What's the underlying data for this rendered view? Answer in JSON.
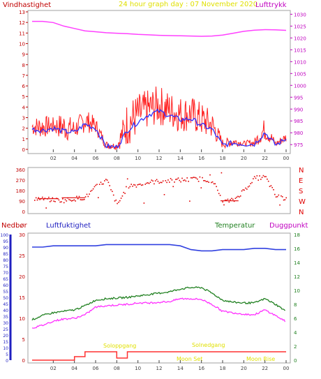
{
  "header": {
    "left_label": "Vindhastighet",
    "title": "24 hour graph day : 07 November 2020",
    "right_label": "Lufttrykk"
  },
  "colors": {
    "wind_raw": "#ff2020",
    "wind_avg": "#3030ff",
    "pressure": "#ff40ff",
    "direction": "#e00000",
    "humidity": "#3040e0",
    "temperature": "#208020",
    "dewpoint": "#ff30ff",
    "rain": "#ff3030",
    "header_left": "#c00000",
    "header_title": "#e0e000",
    "frame": "#a0a0a0"
  },
  "chart_data": [
    {
      "type": "line",
      "name": "wind-pressure",
      "x_ticks": [
        "02",
        "04",
        "06",
        "08",
        "10",
        "12",
        "14",
        "16",
        "18",
        "20",
        "22",
        "00"
      ],
      "yleft_ticks": [
        "0",
        "1",
        "2",
        "3",
        "4",
        "5",
        "6",
        "7",
        "8",
        "9",
        "10",
        "11",
        "12",
        "13"
      ],
      "yleft_lim": [
        0,
        13
      ],
      "yright_ticks": [
        "975",
        "980",
        "985",
        "990",
        "995",
        "1000",
        "1005",
        "1010",
        "1015",
        "1020",
        "1025",
        "1030"
      ],
      "yright_lim": [
        973,
        1031
      ],
      "hours": [
        0,
        1,
        2,
        3,
        4,
        5,
        6,
        7,
        8,
        9,
        10,
        11,
        12,
        13,
        14,
        15,
        16,
        17,
        18,
        19,
        20,
        21,
        22,
        23,
        24
      ],
      "wind_avg": [
        1.9,
        1.8,
        2.0,
        1.7,
        1.6,
        2.4,
        2.0,
        0.3,
        0.2,
        1.8,
        2.6,
        3.3,
        3.6,
        3.2,
        2.8,
        2.9,
        2.3,
        1.9,
        0.4,
        0.6,
        0.5,
        0.5,
        1.6,
        0.4,
        1.0
      ],
      "gust_peak": [
        3.0,
        3.2,
        3.0,
        3.5,
        2.8,
        3.8,
        3.0,
        0.8,
        0.6,
        4.6,
        5.2,
        5.6,
        6.0,
        5.4,
        5.0,
        5.0,
        4.4,
        3.6,
        1.0,
        1.2,
        0.8,
        1.0,
        3.0,
        0.8,
        1.6
      ],
      "pressure": [
        1027.0,
        1027.0,
        1026.5,
        1025.0,
        1024.0,
        1023.0,
        1022.6,
        1022.2,
        1022.0,
        1021.8,
        1021.5,
        1021.3,
        1021.1,
        1021.0,
        1020.9,
        1020.8,
        1020.7,
        1020.8,
        1021.2,
        1022.0,
        1022.8,
        1023.3,
        1023.5,
        1023.4,
        1023.2
      ]
    },
    {
      "type": "scatter",
      "name": "wind-direction",
      "yleft_ticks": [
        "0",
        "90",
        "180",
        "270",
        "360"
      ],
      "ylim": [
        0,
        360
      ],
      "yright_ticks": [
        "N",
        "W",
        "S",
        "E",
        "N"
      ],
      "hours": [
        0,
        1,
        2,
        3,
        4,
        5,
        6,
        7,
        8,
        9,
        10,
        11,
        12,
        13,
        14,
        15,
        16,
        17,
        18,
        19,
        20,
        21,
        22,
        23,
        24
      ],
      "direction": [
        120,
        110,
        105,
        100,
        115,
        125,
        215,
        275,
        60,
        225,
        235,
        255,
        265,
        270,
        275,
        280,
        285,
        270,
        90,
        100,
        190,
        290,
        300,
        135,
        115
      ]
    },
    {
      "type": "line",
      "name": "humidity-temperature-rain",
      "labels": {
        "rain": "Nedbør",
        "humidity": "Luftfuktighet",
        "temperature": "Temperatur",
        "dewpoint": "Duggpunkt"
      },
      "x_ticks": [
        "02",
        "04",
        "06",
        "08",
        "10",
        "12",
        "14",
        "16",
        "18",
        "20",
        "22",
        "00"
      ],
      "rain_ticks": [
        "0",
        "5",
        "10",
        "15",
        "20",
        "25",
        "30",
        "35",
        "40",
        "45",
        "50",
        "55",
        "60",
        "65",
        "70",
        "75",
        "80",
        "85",
        "90",
        "95",
        "100"
      ],
      "humidity_ticks": [
        "0",
        "5",
        "10",
        "15",
        "20",
        "25",
        "30"
      ],
      "temperature_ticks": [
        "0",
        "2",
        "4",
        "6",
        "8",
        "10",
        "12",
        "14",
        "16",
        "18"
      ],
      "temp_lim": [
        0,
        18
      ],
      "hours": [
        0,
        1,
        2,
        3,
        4,
        5,
        6,
        7,
        8,
        9,
        10,
        11,
        12,
        13,
        14,
        15,
        16,
        17,
        18,
        19,
        20,
        21,
        22,
        23,
        24
      ],
      "humidity": [
        90,
        90,
        91,
        91,
        91,
        91,
        91,
        92,
        92,
        92,
        92,
        92,
        92,
        92,
        91,
        88,
        87,
        87,
        88,
        88,
        88,
        89,
        89,
        88,
        88
      ],
      "temperature": [
        5.8,
        6.4,
        6.8,
        7.0,
        7.2,
        7.8,
        8.6,
        8.8,
        8.9,
        9.0,
        9.2,
        9.4,
        9.6,
        9.8,
        10.2,
        10.4,
        10.4,
        9.6,
        8.6,
        8.3,
        8.2,
        8.2,
        8.8,
        8.0,
        7.0
      ],
      "dewpoint": [
        4.6,
        5.0,
        5.6,
        5.9,
        6.0,
        6.5,
        7.6,
        7.8,
        7.9,
        8.0,
        8.2,
        8.2,
        8.3,
        8.4,
        8.8,
        8.8,
        8.7,
        8.0,
        7.0,
        6.8,
        6.6,
        6.5,
        7.2,
        6.4,
        5.5
      ],
      "rain_x": [
        0,
        3,
        4,
        5,
        7.2,
        8,
        9,
        16.2,
        24
      ],
      "rain": [
        0,
        0,
        0.5,
        1.2,
        1.2,
        0.3,
        1.2,
        1.2,
        1.2
      ],
      "annotations": [
        "Soloppgang",
        "Solnedgang",
        "Moon Set",
        "Moon Rise"
      ]
    }
  ]
}
